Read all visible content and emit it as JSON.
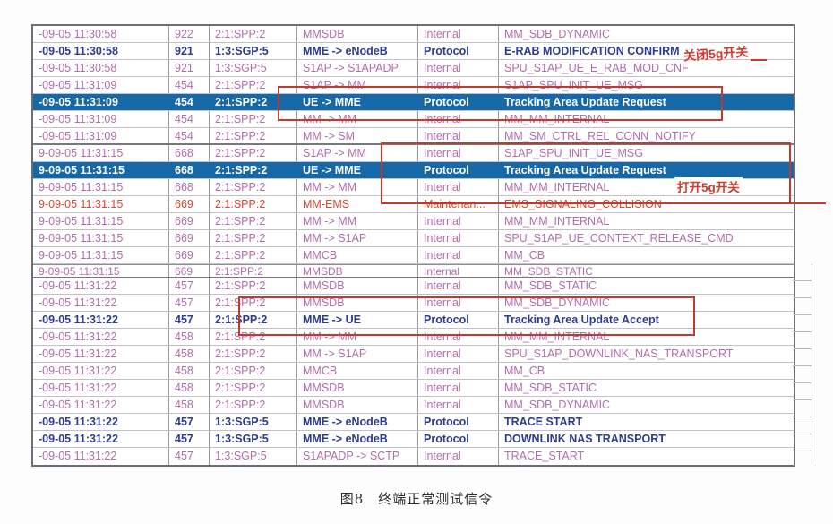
{
  "window": {
    "kind": "signaling-trace-viewer"
  },
  "colors": {
    "row_normal_text": "#b26dad",
    "row_bold_text": "#2c3c8e",
    "row_selected_bg": "#1569a8",
    "row_selected_text": "#ffffff",
    "row_alarm_text": "#e0452c",
    "annotation_red": "#c23a2b"
  },
  "table": {
    "columns": [
      "time",
      "msg_no",
      "board",
      "direction",
      "type",
      "message"
    ],
    "rows": [
      {
        "time": "-09-05 11:30:58",
        "no": "922",
        "board": "2:1:SPP:2",
        "dir": "MMSDB",
        "type": "Internal",
        "msg": "MM_SDB_DYNAMIC",
        "style": "normal"
      },
      {
        "time": "-09-05 11:30:58",
        "no": "921",
        "board": "1:3:SGP:5",
        "dir": "MME -> eNodeB",
        "type": "Protocol",
        "msg": "E-RAB MODIFICATION CONFIRM",
        "style": "bold"
      },
      {
        "time": "-09-05 11:30:58",
        "no": "921",
        "board": "1:3:SGP:5",
        "dir": "S1AP -> S1APADP",
        "type": "Internal",
        "msg": "SPU_S1AP_UE_E_RAB_MOD_CNF",
        "style": "normal"
      },
      {
        "time": "-09-05 11:31:09",
        "no": "454",
        "board": "2:1:SPP:2",
        "dir": "S1AP -> MM",
        "type": "Internal",
        "msg": "S1AP_SPU_INIT_UE_MSG",
        "style": "normal"
      },
      {
        "time": "-09-05 11:31:09",
        "no": "454",
        "board": "2:1:SPP:2",
        "dir": "UE -> MME",
        "type": "Protocol",
        "msg": "Tracking Area Update Request",
        "style": "selected"
      },
      {
        "time": "-09-05 11:31:09",
        "no": "454",
        "board": "2:1:SPP:2",
        "dir": "MM -> MM",
        "type": "Internal",
        "msg": "MM_MM_INTERNAL",
        "style": "normal"
      },
      {
        "time": "-09-05 11:31:09",
        "no": "454",
        "board": "2:1:SPP:2",
        "dir": "MM -> SM",
        "type": "Internal",
        "msg": "MM_SM_CTRL_REL_CONN_NOTIFY",
        "style": "normal",
        "groupend": true
      },
      {
        "time": "9-09-05 11:31:15",
        "no": "668",
        "board": "2:1:SPP:2",
        "dir": "S1AP -> MM",
        "type": "Internal",
        "msg": "S1AP_SPU_INIT_UE_MSG",
        "style": "normal"
      },
      {
        "time": "9-09-05 11:31:15",
        "no": "668",
        "board": "2:1:SPP:2",
        "dir": "UE -> MME",
        "type": "Protocol",
        "msg": "Tracking Area Update Request",
        "style": "selected"
      },
      {
        "time": "9-09-05 11:31:15",
        "no": "668",
        "board": "2:1:SPP:2",
        "dir": "MM -> MM",
        "type": "Internal",
        "msg": "MM_MM_INTERNAL",
        "style": "normal"
      },
      {
        "time": "9-09-05 11:31:15",
        "no": "669",
        "board": "2:1:SPP:2",
        "dir": "MM-EMS",
        "type": "Maintenan...",
        "msg": "EMS_SIGNALING_COLLISION",
        "style": "alarm"
      },
      {
        "time": "9-09-05 11:31:15",
        "no": "669",
        "board": "2:1:SPP:2",
        "dir": "MM -> MM",
        "type": "Internal",
        "msg": "MM_MM_INTERNAL",
        "style": "normal"
      },
      {
        "time": "9-09-05 11:31:15",
        "no": "669",
        "board": "2:1:SPP:2",
        "dir": "MM -> S1AP",
        "type": "Internal",
        "msg": "SPU_S1AP_UE_CONTEXT_RELEASE_CMD",
        "style": "normal"
      },
      {
        "time": "9-09-05 11:31:15",
        "no": "669",
        "board": "2:1:SPP:2",
        "dir": "MMCB",
        "type": "Internal",
        "msg": "MM_CB",
        "style": "normal"
      },
      {
        "time": "9-09-05 11:31:15",
        "no": "669",
        "board": "2:1:SPP:2",
        "dir": "MMSDB",
        "type": "Internal",
        "msg": "MM_SDB_STATIC",
        "style": "normal",
        "seam": true
      },
      {
        "time": "-09-05 11:31:22",
        "no": "457",
        "board": "2:1:SPP:2",
        "dir": "MMSDB",
        "type": "Internal",
        "msg": "MM_SDB_STATIC",
        "style": "normal"
      },
      {
        "time": "-09-05 11:31:22",
        "no": "457",
        "board": "2:1:SPP:2",
        "dir": "MMSDB",
        "type": "Internal",
        "msg": "MM_SDB_DYNAMIC",
        "style": "normal"
      },
      {
        "time": "-09-05 11:31:22",
        "no": "457",
        "board": "2:1:SPP:2",
        "dir": "MME -> UE",
        "type": "Protocol",
        "msg": "Tracking Area Update Accept",
        "style": "bold"
      },
      {
        "time": "-09-05 11:31:22",
        "no": "458",
        "board": "2:1:SPP:2",
        "dir": "MM -> MM",
        "type": "Internal",
        "msg": "MM_MM_INTERNAL",
        "style": "normal"
      },
      {
        "time": "-09-05 11:31:22",
        "no": "458",
        "board": "2:1:SPP:2",
        "dir": "MM -> S1AP",
        "type": "Internal",
        "msg": "SPU_S1AP_DOWNLINK_NAS_TRANSPORT",
        "style": "normal"
      },
      {
        "time": "-09-05 11:31:22",
        "no": "458",
        "board": "2:1:SPP:2",
        "dir": "MMCB",
        "type": "Internal",
        "msg": "MM_CB",
        "style": "normal"
      },
      {
        "time": "-09-05 11:31:22",
        "no": "458",
        "board": "2:1:SPP:2",
        "dir": "MMSDB",
        "type": "Internal",
        "msg": "MM_SDB_STATIC",
        "style": "normal"
      },
      {
        "time": "-09-05 11:31:22",
        "no": "458",
        "board": "2:1:SPP:2",
        "dir": "MMSDB",
        "type": "Internal",
        "msg": "MM_SDB_DYNAMIC",
        "style": "normal"
      },
      {
        "time": "-09-05 11:31:22",
        "no": "457",
        "board": "1:3:SGP:5",
        "dir": "MME -> eNodeB",
        "type": "Protocol",
        "msg": "TRACE START",
        "style": "bold"
      },
      {
        "time": "-09-05 11:31:22",
        "no": "457",
        "board": "1:3:SGP:5",
        "dir": "MME -> eNodeB",
        "type": "Protocol",
        "msg": "DOWNLINK NAS TRANSPORT",
        "style": "bold"
      },
      {
        "time": "-09-05 11:31:22",
        "no": "457",
        "board": "1:3:SGP:5",
        "dir": "S1APADP -> SCTP",
        "type": "Internal",
        "msg": "TRACE_START",
        "style": "normal"
      }
    ]
  },
  "annotations": {
    "close_5g_label": "关闭5g开关",
    "open_5g_label": "打开5g开关"
  },
  "caption": "图8　终端正常测试信令"
}
